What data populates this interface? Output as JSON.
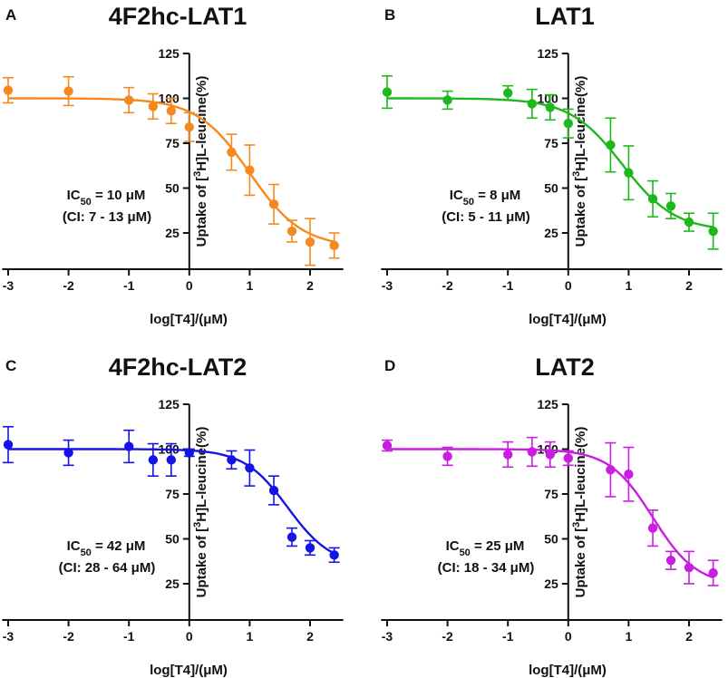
{
  "chart_data": [
    {
      "type": "scatter",
      "panel_letter": "A",
      "title": "4F2hc-LAT1",
      "color": "#f5891f",
      "xlabel": "log[T4]/(μM)",
      "ylabel_parts": [
        "Uptake of [",
        "3",
        "H]L-leucine(%)"
      ],
      "xlim": [
        -3.1,
        2.5
      ],
      "ylim": [
        5,
        125
      ],
      "xticks": [
        "-3",
        "-2",
        "-1",
        "0",
        "1",
        "2"
      ],
      "yticks": [
        "25",
        "50",
        "75",
        "100",
        "125"
      ],
      "ic50": {
        "label": "IC",
        "sub": "50",
        "value": " = 10 μM",
        "ci": "(CI: 7 - 13 μM)"
      },
      "fit": {
        "top": 100,
        "bottom": 17,
        "log_ic50": 1.0,
        "hill": 1.0
      },
      "points": [
        {
          "x": -3,
          "y": 104.5,
          "err": 7
        },
        {
          "x": -2,
          "y": 104,
          "err": 8
        },
        {
          "x": -1,
          "y": 99,
          "err": 7
        },
        {
          "x": -0.6,
          "y": 95.5,
          "err": 7
        },
        {
          "x": -0.3,
          "y": 93,
          "err": 7
        },
        {
          "x": 0,
          "y": 84,
          "err": 8
        },
        {
          "x": 0.7,
          "y": 70,
          "err": 10
        },
        {
          "x": 1,
          "y": 60,
          "err": 14
        },
        {
          "x": 1.4,
          "y": 41,
          "err": 11
        },
        {
          "x": 1.7,
          "y": 26,
          "err": 6
        },
        {
          "x": 2,
          "y": 20,
          "err": 13
        },
        {
          "x": 2.4,
          "y": 18,
          "err": 7
        }
      ]
    },
    {
      "type": "scatter",
      "panel_letter": "B",
      "title": "LAT1",
      "color": "#1db81d",
      "xlabel": "log[T4]/(μM)",
      "ylabel_parts": [
        "Uptake of [",
        "3",
        "H]L-leucine(%)"
      ],
      "xlim": [
        -3.1,
        2.5
      ],
      "ylim": [
        5,
        125
      ],
      "xticks": [
        "-3",
        "-2",
        "-1",
        "0",
        "1",
        "2"
      ],
      "yticks": [
        "25",
        "50",
        "75",
        "100",
        "125"
      ],
      "ic50": {
        "label": "IC",
        "sub": "50",
        "value": " = 8 μM",
        "ci": "(CI: 5 - 11 μM)"
      },
      "fit": {
        "top": 100,
        "bottom": 26,
        "log_ic50": 0.9,
        "hill": 1.0
      },
      "points": [
        {
          "x": -3,
          "y": 103.5,
          "err": 9
        },
        {
          "x": -2,
          "y": 99,
          "err": 5
        },
        {
          "x": -1,
          "y": 103,
          "err": 4
        },
        {
          "x": -0.6,
          "y": 97,
          "err": 8
        },
        {
          "x": -0.3,
          "y": 95,
          "err": 7
        },
        {
          "x": 0,
          "y": 86,
          "err": 8
        },
        {
          "x": 0.7,
          "y": 74,
          "err": 15
        },
        {
          "x": 1,
          "y": 58.5,
          "err": 15
        },
        {
          "x": 1.4,
          "y": 44,
          "err": 10
        },
        {
          "x": 1.7,
          "y": 40,
          "err": 7
        },
        {
          "x": 2,
          "y": 31,
          "err": 5
        },
        {
          "x": 2.4,
          "y": 26,
          "err": 10
        }
      ]
    },
    {
      "type": "scatter",
      "panel_letter": "C",
      "title": "4F2hc-LAT2",
      "color": "#1414e6",
      "xlabel": "log[T4]/(μM)",
      "ylabel_parts": [
        "Uptake of [",
        "3",
        "H]L-leucine(%)"
      ],
      "xlim": [
        -3.1,
        2.5
      ],
      "ylim": [
        5,
        125
      ],
      "xticks": [
        "-3",
        "-2",
        "-1",
        "0",
        "1",
        "2"
      ],
      "yticks": [
        "25",
        "50",
        "75",
        "100",
        "125"
      ],
      "ic50": {
        "label": "IC",
        "sub": "50",
        "value": " = 42 μM",
        "ci": "(CI: 28 - 64 μM)"
      },
      "fit": {
        "top": 100,
        "bottom": 35,
        "log_ic50": 1.63,
        "hill": 1.2
      },
      "points": [
        {
          "x": -3,
          "y": 102.5,
          "err": 10
        },
        {
          "x": -2,
          "y": 98,
          "err": 7
        },
        {
          "x": -1,
          "y": 101.5,
          "err": 9
        },
        {
          "x": -0.6,
          "y": 94,
          "err": 9
        },
        {
          "x": -0.3,
          "y": 94,
          "err": 9
        },
        {
          "x": 0,
          "y": 98,
          "err": 2
        },
        {
          "x": 0.7,
          "y": 94,
          "err": 5
        },
        {
          "x": 1,
          "y": 89.5,
          "err": 10
        },
        {
          "x": 1.4,
          "y": 77,
          "err": 8
        },
        {
          "x": 1.7,
          "y": 51,
          "err": 5
        },
        {
          "x": 2,
          "y": 45,
          "err": 4
        },
        {
          "x": 2.4,
          "y": 41,
          "err": 4
        }
      ]
    },
    {
      "type": "scatter",
      "panel_letter": "D",
      "title": "LAT2",
      "color": "#c81ee0",
      "xlabel": "log[T4]/(μM)",
      "ylabel_parts": [
        "Uptake of [",
        "3",
        "H]L-leucine(%)"
      ],
      "xlim": [
        -3.1,
        2.5
      ],
      "ylim": [
        5,
        125
      ],
      "xticks": [
        "-3",
        "-2",
        "-1",
        "0",
        "1",
        "2"
      ],
      "yticks": [
        "25",
        "50",
        "75",
        "100",
        "125"
      ],
      "ic50": {
        "label": "IC",
        "sub": "50",
        "value": " = 25 μM",
        "ci": "(CI: 18 - 34 μM)"
      },
      "fit": {
        "top": 100,
        "bottom": 24,
        "log_ic50": 1.4,
        "hill": 1.2
      },
      "points": [
        {
          "x": -3,
          "y": 102,
          "err": 3
        },
        {
          "x": -2,
          "y": 96,
          "err": 5
        },
        {
          "x": -1,
          "y": 97,
          "err": 7
        },
        {
          "x": -0.6,
          "y": 98.5,
          "err": 8
        },
        {
          "x": -0.3,
          "y": 97,
          "err": 7
        },
        {
          "x": 0,
          "y": 95,
          "err": 4
        },
        {
          "x": 0.7,
          "y": 88.5,
          "err": 15
        },
        {
          "x": 1,
          "y": 86,
          "err": 15
        },
        {
          "x": 1.4,
          "y": 56,
          "err": 10
        },
        {
          "x": 1.7,
          "y": 38,
          "err": 5
        },
        {
          "x": 2,
          "y": 34,
          "err": 9
        },
        {
          "x": 2.4,
          "y": 31,
          "err": 7
        }
      ]
    }
  ]
}
